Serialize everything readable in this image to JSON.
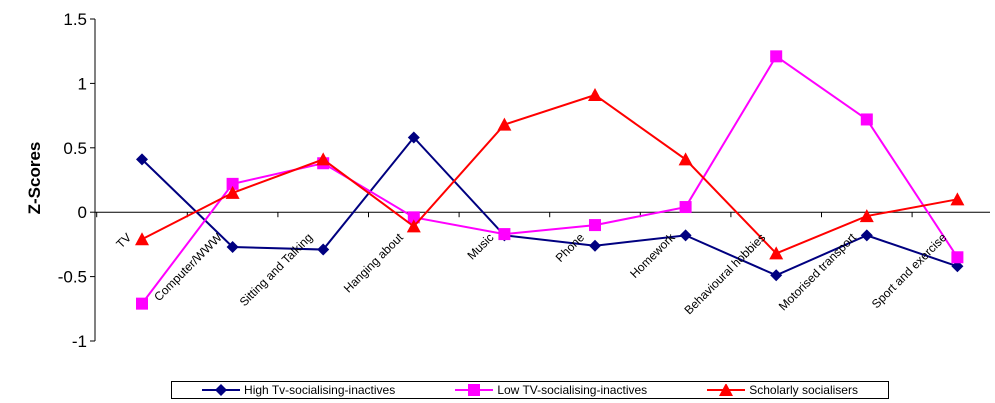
{
  "chart_data": {
    "type": "line",
    "categories": [
      "TV",
      "Computer/WWW",
      "Sitting and Talking",
      "Hanging about",
      "Music",
      "Phone",
      "Homework",
      "Behavioural hobbies",
      "Motorised transport",
      "Sport and exercise"
    ],
    "ylabel": "Z-Scores",
    "ylim": [
      -1,
      1.5
    ],
    "yticks": [
      -1,
      -0.5,
      0,
      0.5,
      1,
      1.5
    ],
    "grid": false,
    "legend_position": "bottom",
    "series": [
      {
        "name": "High Tv-socialising-inactives",
        "color": "#000080",
        "marker": "diamond",
        "values": [
          0.41,
          -0.27,
          -0.29,
          0.58,
          -0.18,
          -0.26,
          -0.18,
          -0.49,
          -0.18,
          -0.42
        ]
      },
      {
        "name": "Low TV-socialising-inactives",
        "color": "#FF00FF",
        "marker": "square",
        "values": [
          -0.71,
          0.22,
          0.38,
          -0.04,
          -0.17,
          -0.1,
          0.04,
          1.21,
          0.72,
          -0.35
        ]
      },
      {
        "name": "Scholarly socialisers",
        "color": "#FF0000",
        "marker": "triangle",
        "values": [
          -0.21,
          0.15,
          0.41,
          -0.11,
          0.68,
          0.91,
          0.41,
          -0.32,
          -0.03,
          0.1
        ]
      }
    ]
  }
}
